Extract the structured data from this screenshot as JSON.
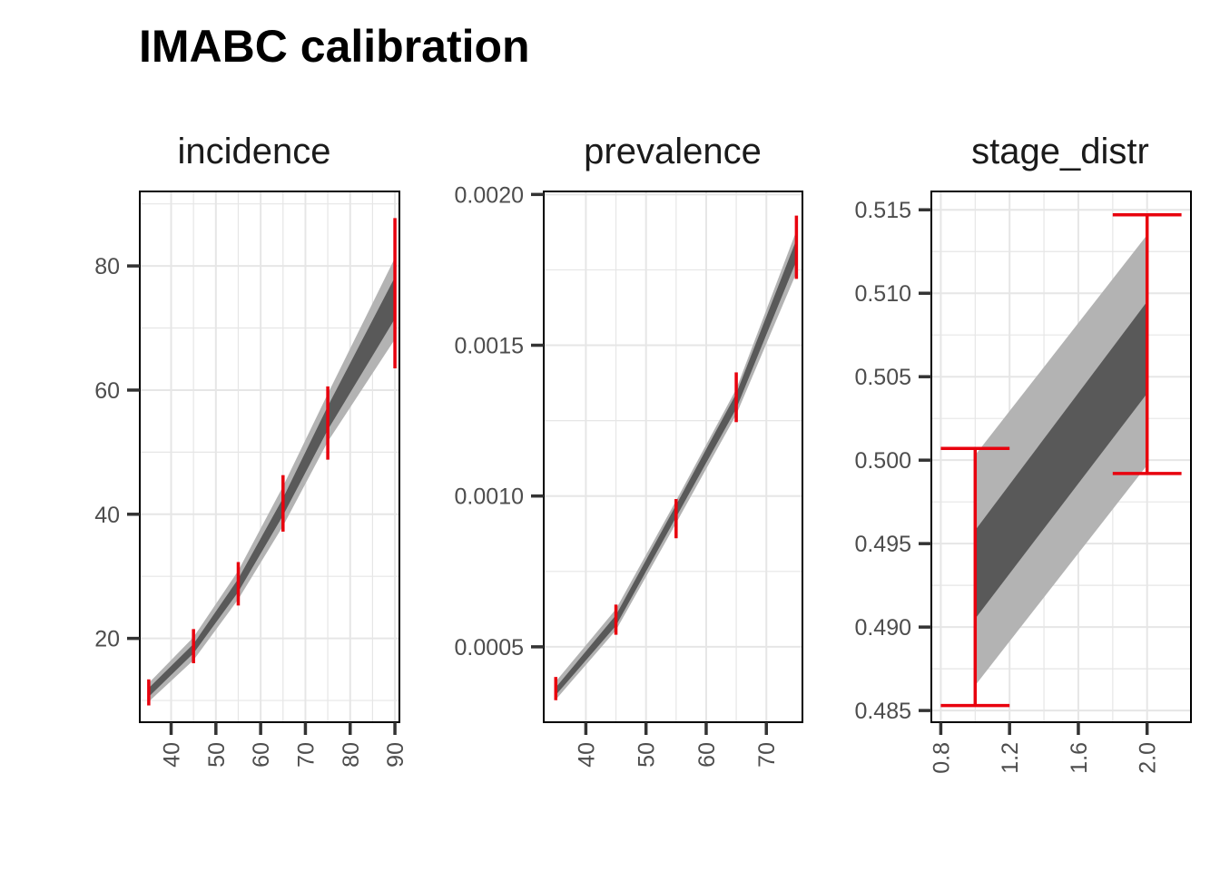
{
  "title": "IMABC calibration",
  "colors": {
    "target": "#e8000d",
    "band_outer": "#b3b3b3",
    "band_inner": "#595959",
    "grid": "#e6e6e6",
    "panel_border": "#000000"
  },
  "chart_data": [
    {
      "type": "line",
      "panel": "incidence",
      "x_ticks": [
        40,
        50,
        60,
        70,
        80,
        90
      ],
      "y_ticks": [
        20,
        40,
        60,
        80
      ],
      "xlim": [
        33,
        91
      ],
      "ylim": [
        6.5,
        92
      ],
      "grid": true,
      "band_x": [
        35,
        45,
        55,
        65,
        75,
        90
      ],
      "band_outer_low": [
        9.8,
        16.5,
        26.3,
        38.1,
        51.7,
        68.2
      ],
      "band_outer_high": [
        12.8,
        20.2,
        30.9,
        44.5,
        59.4,
        81.3
      ],
      "band_inner_low": [
        10.6,
        17.6,
        27.5,
        39.8,
        53.6,
        71.5
      ],
      "band_inner_high": [
        12.0,
        19.1,
        29.6,
        42.6,
        57.4,
        78.2
      ],
      "targets": [
        {
          "x": 35,
          "low": 9.2,
          "high": 13.4
        },
        {
          "x": 45,
          "low": 16.0,
          "high": 21.5
        },
        {
          "x": 55,
          "low": 25.3,
          "high": 32.3
        },
        {
          "x": 65,
          "low": 37.2,
          "high": 46.3
        },
        {
          "x": 75,
          "low": 48.8,
          "high": 60.6
        },
        {
          "x": 90,
          "low": 63.5,
          "high": 87.7
        }
      ]
    },
    {
      "type": "line",
      "panel": "prevalence",
      "x_ticks": [
        40,
        50,
        60,
        70
      ],
      "y_ticks": [
        0.0005,
        0.001,
        0.0015,
        0.002
      ],
      "y_tick_labels": [
        "0.0005",
        "0.0010",
        "0.0015",
        "0.0020"
      ],
      "xlim": [
        33,
        76
      ],
      "ylim": [
        0.00025,
        0.00201
      ],
      "grid": true,
      "band_x": [
        35,
        45,
        55,
        65,
        75
      ],
      "band_outer_low": [
        0.000325,
        0.000555,
        0.00091,
        0.00127,
        0.00174
      ],
      "band_outer_high": [
        0.000385,
        0.000625,
        0.000985,
        0.001355,
        0.00188
      ],
      "band_inner_low": [
        0.00034,
        0.00057,
        0.00093,
        0.00129,
        0.00178
      ],
      "band_inner_high": [
        0.000365,
        0.000605,
        0.00097,
        0.00134,
        0.00185
      ],
      "targets": [
        {
          "x": 35,
          "low": 0.000323,
          "high": 0.0004
        },
        {
          "x": 45,
          "low": 0.00054,
          "high": 0.00064
        },
        {
          "x": 55,
          "low": 0.00086,
          "high": 0.00099
        },
        {
          "x": 65,
          "low": 0.001245,
          "high": 0.00141
        },
        {
          "x": 75,
          "low": 0.00172,
          "high": 0.00193
        }
      ]
    },
    {
      "type": "line",
      "panel": "stage_distr",
      "x_ticks": [
        0.8,
        1.2,
        1.6,
        2.0
      ],
      "x_tick_labels": [
        "0.8",
        "1.2",
        "1.6",
        "2.0"
      ],
      "y_ticks": [
        0.485,
        0.49,
        0.495,
        0.5,
        0.505,
        0.51,
        0.515
      ],
      "y_tick_labels": [
        "0.485",
        "0.490",
        "0.495",
        "0.500",
        "0.505",
        "0.510",
        "0.515"
      ],
      "xlim": [
        0.745,
        2.255
      ],
      "ylim": [
        0.4843,
        0.5161
      ],
      "grid": true,
      "band_x": [
        1.0,
        2.0
      ],
      "band_outer_low": [
        0.4865,
        0.4997
      ],
      "band_outer_high": [
        0.5003,
        0.5135
      ],
      "band_inner_low": [
        0.4905,
        0.504
      ],
      "band_inner_high": [
        0.4958,
        0.5095
      ],
      "targets": [
        {
          "x": 1.0,
          "low": 0.4853,
          "high": 0.5007,
          "cap": 0.2
        },
        {
          "x": 2.0,
          "low": 0.4992,
          "high": 0.5147,
          "cap": 0.2
        }
      ]
    }
  ]
}
